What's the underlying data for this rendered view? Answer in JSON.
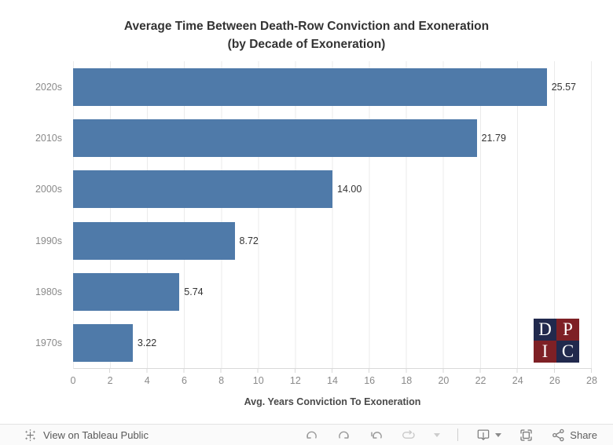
{
  "title": {
    "line1": "Average Time Between Death-Row Conviction and Exoneration",
    "line2": "(by Decade of Exoneration)"
  },
  "chart_data": {
    "type": "bar",
    "orientation": "horizontal",
    "title": "Average Time Between Death-Row Conviction and Exoneration (by Decade of Exoneration)",
    "categories": [
      "2020s",
      "2010s",
      "2000s",
      "1990s",
      "1980s",
      "1970s"
    ],
    "values": [
      25.57,
      21.79,
      14.0,
      8.72,
      5.74,
      3.22
    ],
    "value_labels": [
      "25.57",
      "21.79",
      "14.00",
      "8.72",
      "5.74",
      "3.22"
    ],
    "xlabel": "Avg. Years Conviction To Exoneration",
    "ylabel": "",
    "xlim": [
      0,
      28
    ],
    "x_ticks": [
      "0",
      "2",
      "4",
      "6",
      "8",
      "10",
      "12",
      "14",
      "16",
      "18",
      "20",
      "22",
      "24",
      "26",
      "28"
    ],
    "grid": "vertical-gridlines-on",
    "legend": "none",
    "bar_color": "#4f7aa9"
  },
  "theme": {
    "bar_color": "#4f7aa9",
    "gridline_color": "#ebebeb",
    "axis_line_color": "#d9d9d9",
    "label_color": "#8a8a8a",
    "value_color": "#333333",
    "logo_navy": "#21294d",
    "logo_red": "#7e2025"
  },
  "logo": {
    "name": "DPIC",
    "letters": [
      "D",
      "P",
      "I",
      "C"
    ]
  },
  "footer": {
    "view_label": "View on Tableau Public",
    "share_label": "Share",
    "toolbar_icons": [
      {
        "name": "undo",
        "enabled": true
      },
      {
        "name": "redo",
        "enabled": true
      },
      {
        "name": "reset",
        "enabled": true
      },
      {
        "name": "refresh",
        "enabled": false
      },
      {
        "name": "refresh-menu-caret",
        "enabled": false
      },
      {
        "name": "download",
        "enabled": true
      },
      {
        "name": "download-menu-caret",
        "enabled": true
      },
      {
        "name": "fullscreen",
        "enabled": true
      },
      {
        "name": "share",
        "enabled": true
      }
    ]
  }
}
